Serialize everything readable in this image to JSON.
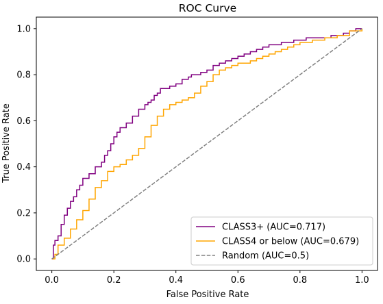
{
  "chart_data": {
    "type": "line",
    "title": "ROC Curve",
    "xlabel": "False Positive Rate",
    "ylabel": "True Positive Rate",
    "xlim": [
      -0.05,
      1.05
    ],
    "ylim": [
      -0.05,
      1.05
    ],
    "xticks": [
      "0.0",
      "0.2",
      "0.4",
      "0.6",
      "0.8",
      "1.0"
    ],
    "yticks": [
      "0.0",
      "0.2",
      "0.4",
      "0.6",
      "0.8",
      "1.0"
    ],
    "grid": false,
    "legend_position": "lower-right",
    "series": [
      {
        "name": "CLASS3+ (AUC=0.717)",
        "color": "#800080",
        "style": "step",
        "x": [
          0,
          0.005,
          0.01,
          0.02,
          0.03,
          0.04,
          0.05,
          0.06,
          0.07,
          0.08,
          0.09,
          0.1,
          0.12,
          0.14,
          0.16,
          0.17,
          0.18,
          0.19,
          0.2,
          0.21,
          0.22,
          0.24,
          0.26,
          0.28,
          0.3,
          0.31,
          0.32,
          0.33,
          0.34,
          0.35,
          0.36,
          0.38,
          0.4,
          0.42,
          0.44,
          0.45,
          0.46,
          0.48,
          0.5,
          0.52,
          0.54,
          0.56,
          0.58,
          0.6,
          0.62,
          0.64,
          0.66,
          0.68,
          0.7,
          0.74,
          0.78,
          0.82,
          0.86,
          0.9,
          0.94,
          0.96,
          0.98,
          1.0
        ],
        "y": [
          0,
          0.06,
          0.08,
          0.1,
          0.15,
          0.19,
          0.22,
          0.25,
          0.27,
          0.3,
          0.32,
          0.35,
          0.37,
          0.4,
          0.42,
          0.45,
          0.47,
          0.5,
          0.53,
          0.55,
          0.57,
          0.59,
          0.62,
          0.65,
          0.67,
          0.68,
          0.69,
          0.71,
          0.72,
          0.74,
          0.74,
          0.75,
          0.76,
          0.78,
          0.79,
          0.8,
          0.8,
          0.81,
          0.82,
          0.84,
          0.85,
          0.86,
          0.87,
          0.88,
          0.89,
          0.9,
          0.91,
          0.92,
          0.93,
          0.94,
          0.95,
          0.96,
          0.96,
          0.97,
          0.98,
          0.99,
          1.0,
          1.0
        ]
      },
      {
        "name": "CLASS4 or below (AUC=0.679)",
        "color": "#FFA500",
        "style": "step",
        "x": [
          0,
          0.01,
          0.02,
          0.04,
          0.06,
          0.08,
          0.1,
          0.12,
          0.14,
          0.16,
          0.18,
          0.2,
          0.22,
          0.24,
          0.26,
          0.28,
          0.3,
          0.32,
          0.34,
          0.36,
          0.38,
          0.4,
          0.42,
          0.44,
          0.46,
          0.48,
          0.5,
          0.52,
          0.54,
          0.56,
          0.58,
          0.6,
          0.62,
          0.64,
          0.66,
          0.68,
          0.7,
          0.72,
          0.74,
          0.76,
          0.78,
          0.8,
          0.84,
          0.88,
          0.92,
          0.96,
          1.0
        ],
        "y": [
          0,
          0.02,
          0.06,
          0.09,
          0.13,
          0.17,
          0.21,
          0.26,
          0.31,
          0.34,
          0.38,
          0.4,
          0.41,
          0.43,
          0.45,
          0.48,
          0.53,
          0.58,
          0.62,
          0.65,
          0.67,
          0.68,
          0.69,
          0.7,
          0.72,
          0.75,
          0.77,
          0.8,
          0.82,
          0.83,
          0.84,
          0.85,
          0.85,
          0.86,
          0.87,
          0.88,
          0.89,
          0.9,
          0.91,
          0.92,
          0.93,
          0.94,
          0.95,
          0.96,
          0.97,
          0.99,
          1.0
        ]
      },
      {
        "name": "Random (AUC=0.5)",
        "color": "#808080",
        "style": "dashed",
        "x": [
          0,
          1
        ],
        "y": [
          0,
          1
        ]
      }
    ]
  }
}
